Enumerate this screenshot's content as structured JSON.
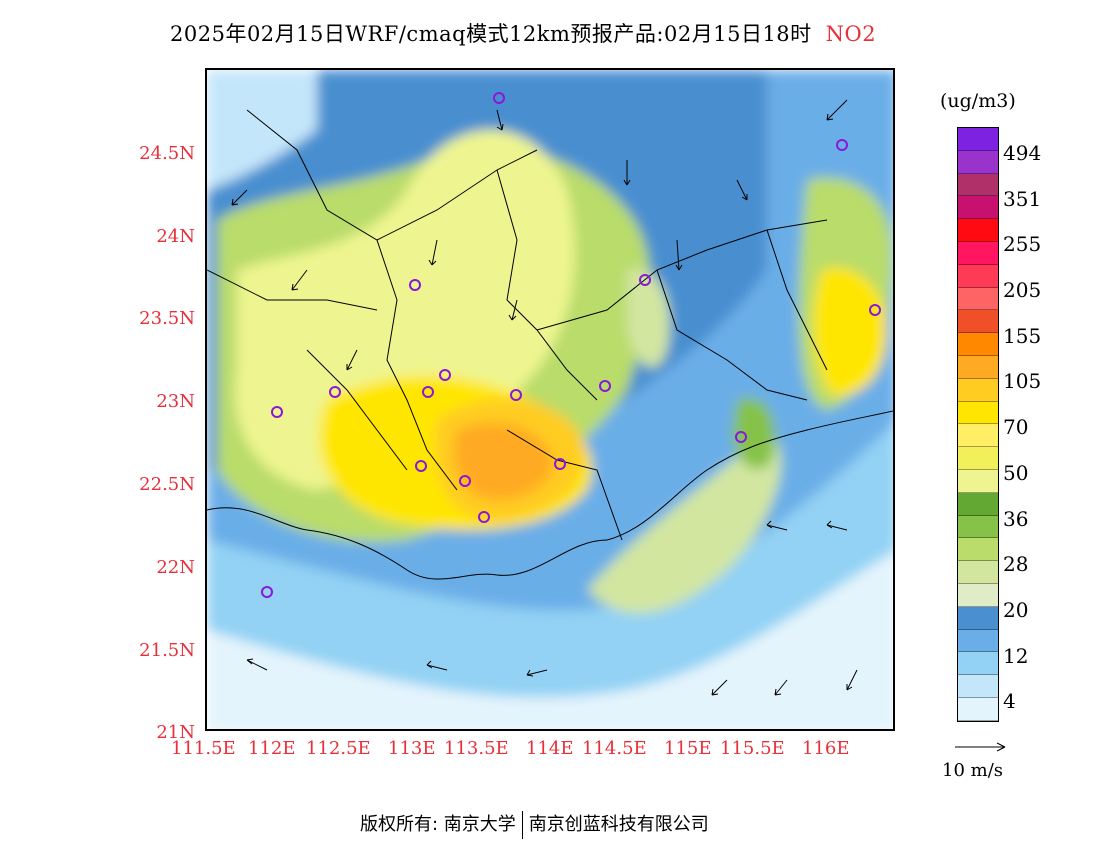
{
  "title": {
    "main": "2025年02月15日WRF/cmaq模式12km预报产品:02月15日18时",
    "pollutant": "NO2"
  },
  "map": {
    "lon_range": [
      111.5,
      116.5
    ],
    "lat_range": [
      21.0,
      25.0
    ],
    "lat_labels": [
      "24.5N",
      "24N",
      "23.5N",
      "23N",
      "22.5N",
      "22N",
      "21.5N",
      "21N"
    ],
    "lon_labels": [
      "111.5E",
      "112E",
      "112.5E",
      "113E",
      "113.5E",
      "114E",
      "114.5E",
      "115E",
      "115.5E",
      "116E"
    ]
  },
  "legend": {
    "unit": "(ug/m3)",
    "levels": [
      "494",
      "351",
      "255",
      "205",
      "155",
      "105",
      "70",
      "50",
      "36",
      "28",
      "20",
      "12",
      "4"
    ],
    "colors": [
      "#7d22e0",
      "#9a33cc",
      "#b0306a",
      "#c8106e",
      "#ff0a10",
      "#ff1560",
      "#ff3a55",
      "#ff6464",
      "#f05028",
      "#ff8800",
      "#ffaa22",
      "#ffcc22",
      "#ffe600",
      "#ffee66",
      "#f2f05a",
      "#eef590",
      "#62a832",
      "#86c248",
      "#b9dc6a",
      "#d2e6a0",
      "#e0ecc8",
      "#4a8fd0",
      "#6aaee8",
      "#93d2f4",
      "#c4e6fa",
      "#e4f4fc"
    ]
  },
  "reference_vector": {
    "label": "10 m/s"
  },
  "footer": {
    "left": "版权所有: 南京大学",
    "right": "南京创蓝科技有限公司"
  }
}
